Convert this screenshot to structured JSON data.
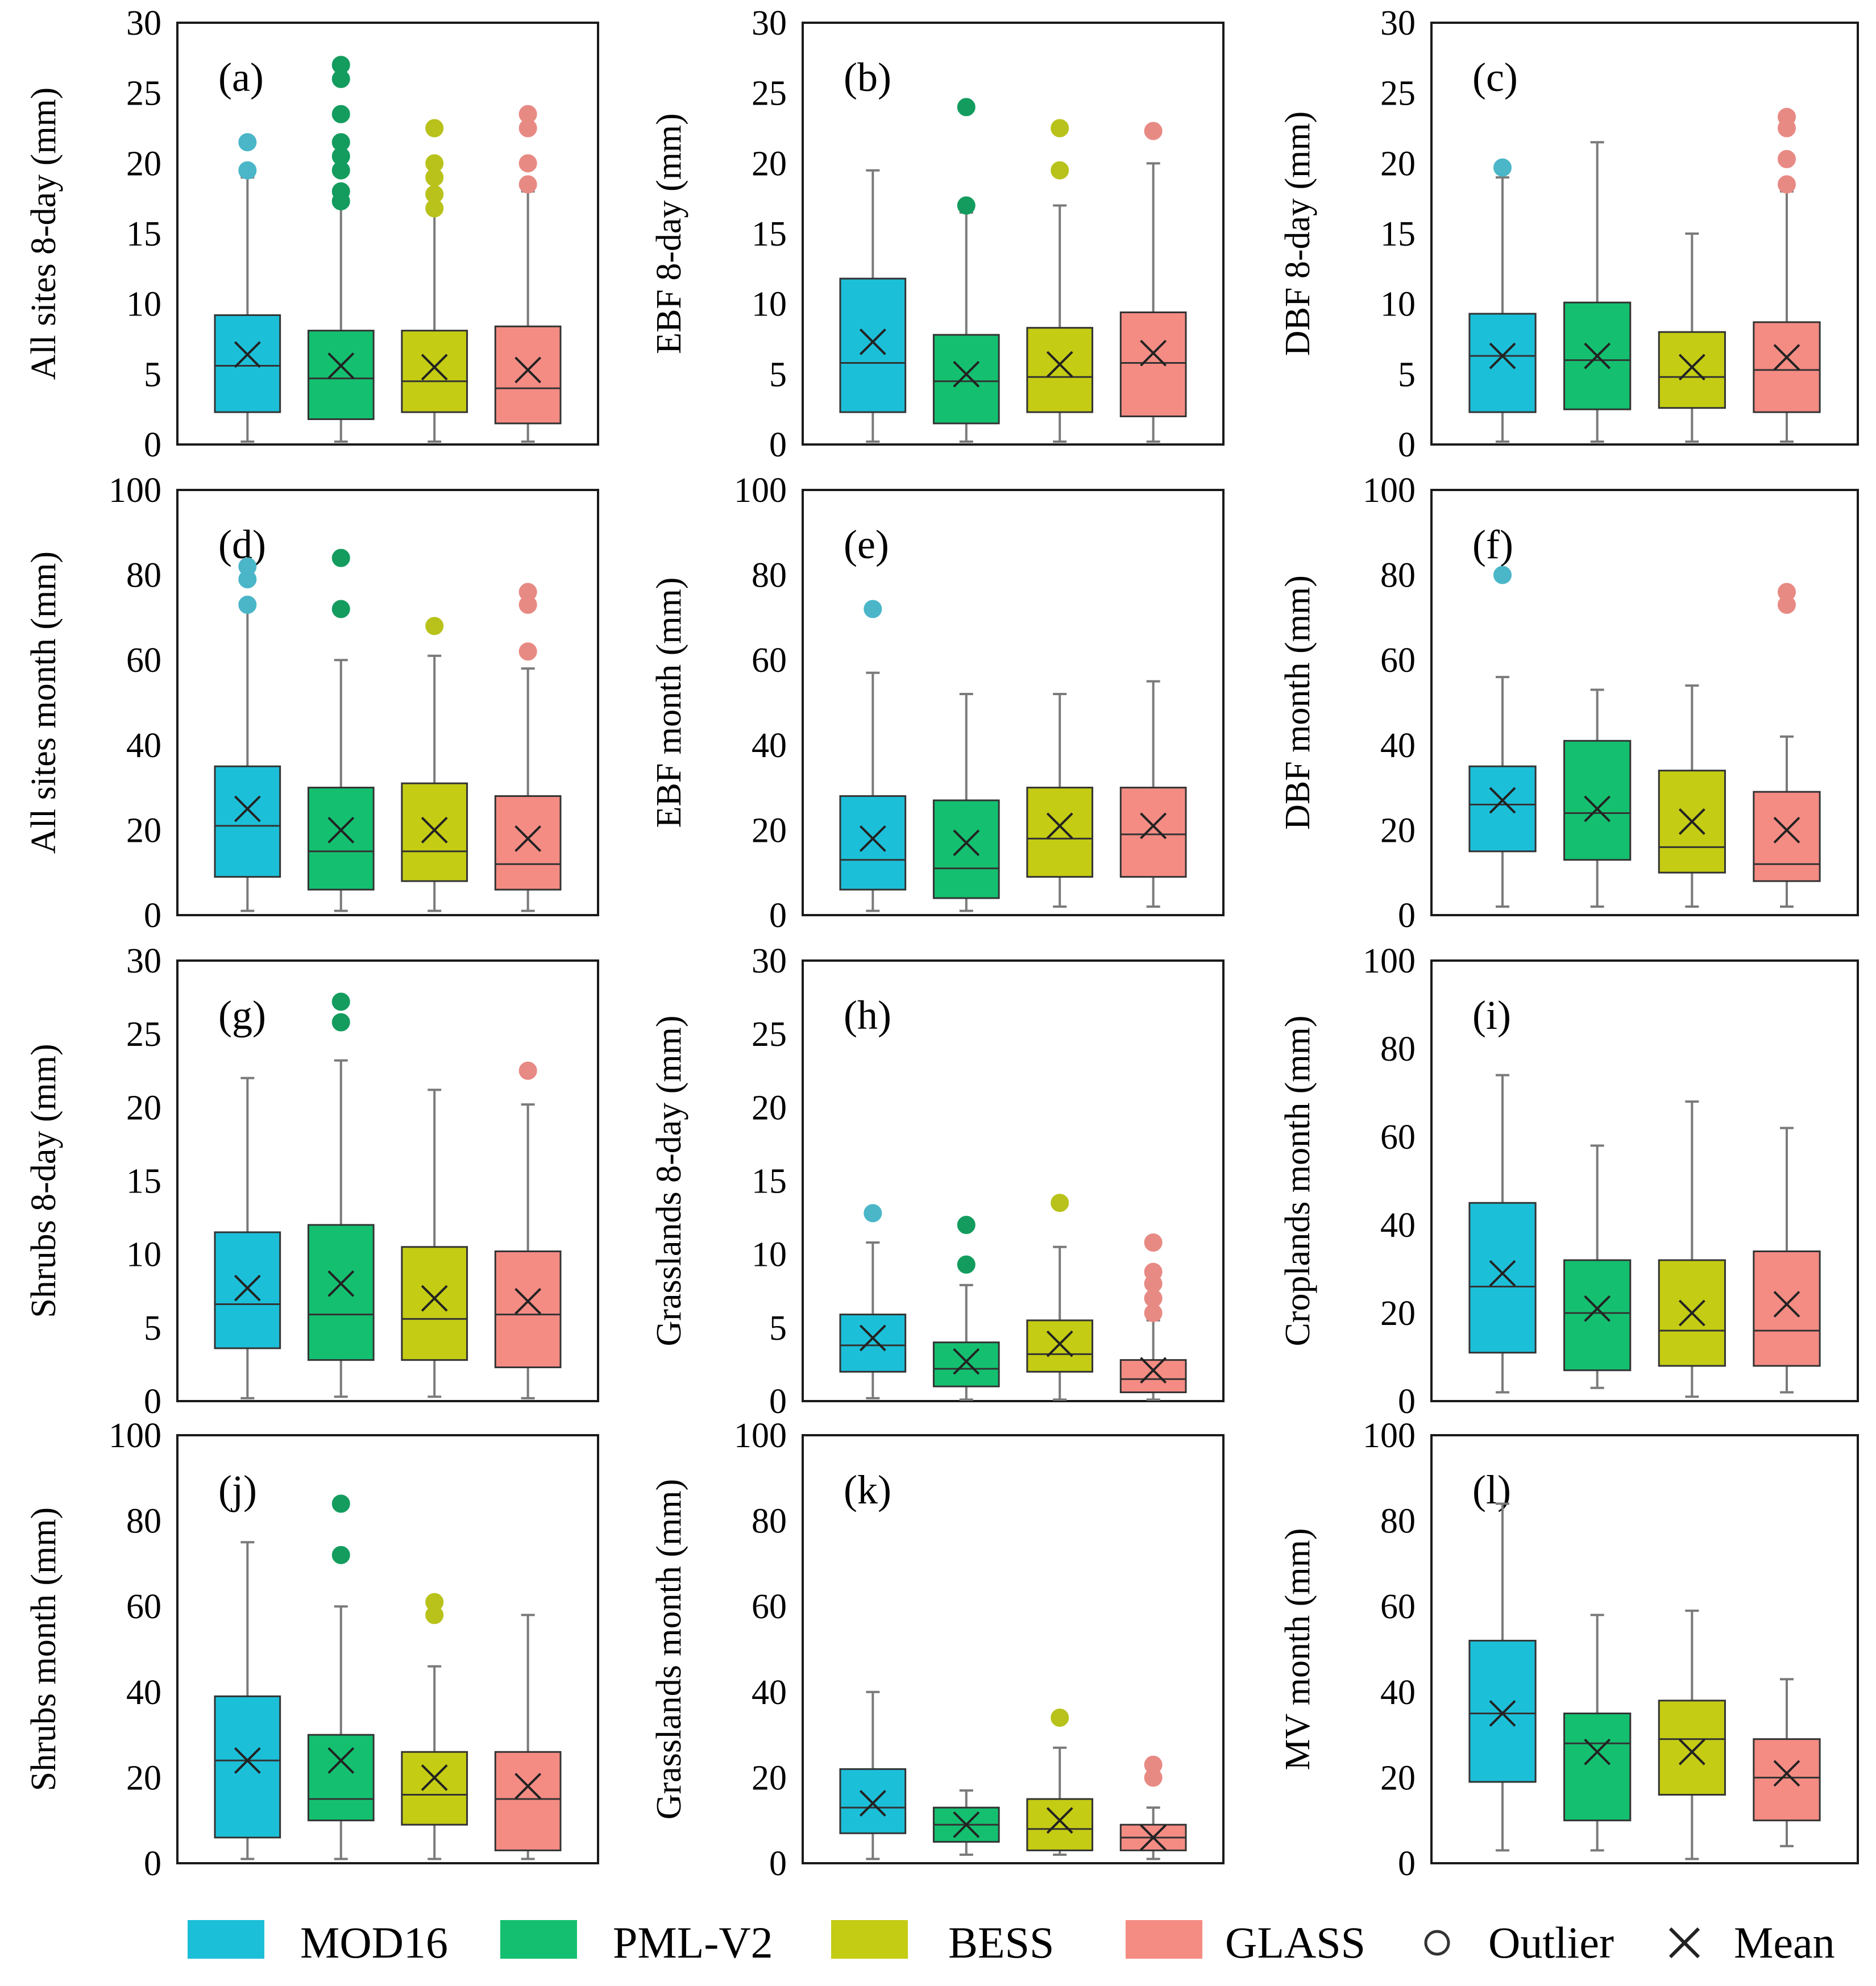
{
  "colors": {
    "MOD16": "#1cbfd8",
    "PML-V2": "#14c070",
    "BESS": "#c4cc14",
    "GLASS": "#f48c84",
    "MOD16_outlier": "#4ab6c8",
    "PML-V2_outlier": "#139c5e",
    "BESS_outlier": "#b8c21a",
    "GLASS_outlier": "#e88a84"
  },
  "legend": {
    "items": [
      {
        "key": "MOD16",
        "label": "MOD16"
      },
      {
        "key": "PML-V2",
        "label": "PML-V2"
      },
      {
        "key": "BESS",
        "label": "BESS"
      },
      {
        "key": "GLASS",
        "label": "GLASS"
      }
    ],
    "outlier_label": "Outlier",
    "mean_label": "Mean"
  },
  "chart_data": [
    {
      "type": "box",
      "panel": "(a)",
      "ylabel": "All sites 8-day (mm)",
      "ylim": [
        0,
        30
      ],
      "yticks": [
        0,
        5,
        10,
        15,
        20,
        25,
        30
      ],
      "series": [
        {
          "name": "MOD16",
          "min": 0.2,
          "q1": 2.3,
          "median": 5.6,
          "q3": 9.2,
          "max": 19.0,
          "mean": 6.4,
          "outliers": [
            19.5,
            21.5
          ]
        },
        {
          "name": "PML-V2",
          "min": 0.2,
          "q1": 1.8,
          "median": 4.7,
          "q3": 8.1,
          "max": 17.0,
          "mean": 5.6,
          "outliers": [
            17.3,
            18.0,
            19.5,
            20.5,
            21.5,
            23.5,
            26.0,
            27.0
          ]
        },
        {
          "name": "BESS",
          "min": 0.2,
          "q1": 2.3,
          "median": 4.5,
          "q3": 8.1,
          "max": 16.5,
          "mean": 5.5,
          "outliers": [
            16.8,
            17.8,
            19.0,
            20.0,
            22.5
          ]
        },
        {
          "name": "GLASS",
          "min": 0.2,
          "q1": 1.5,
          "median": 4.0,
          "q3": 8.4,
          "max": 18.0,
          "mean": 5.3,
          "outliers": [
            18.5,
            20.0,
            22.5,
            23.5
          ]
        }
      ]
    },
    {
      "type": "box",
      "panel": "(b)",
      "ylabel": "EBF 8-day (mm)",
      "ylim": [
        0,
        30
      ],
      "yticks": [
        0,
        5,
        10,
        15,
        20,
        25,
        30
      ],
      "series": [
        {
          "name": "MOD16",
          "min": 0.2,
          "q1": 2.3,
          "median": 5.8,
          "q3": 11.8,
          "max": 19.5,
          "mean": 7.3,
          "outliers": []
        },
        {
          "name": "PML-V2",
          "min": 0.2,
          "q1": 1.5,
          "median": 4.5,
          "q3": 7.8,
          "max": 16.5,
          "mean": 5.0,
          "outliers": [
            17.0,
            24.0
          ]
        },
        {
          "name": "BESS",
          "min": 0.2,
          "q1": 2.3,
          "median": 4.8,
          "q3": 8.3,
          "max": 17.0,
          "mean": 5.7,
          "outliers": [
            19.5,
            22.5
          ]
        },
        {
          "name": "GLASS",
          "min": 0.2,
          "q1": 2.0,
          "median": 5.8,
          "q3": 9.4,
          "max": 20.0,
          "mean": 6.5,
          "outliers": [
            22.3
          ]
        }
      ]
    },
    {
      "type": "box",
      "panel": "(c)",
      "ylabel": "DBF 8-day (mm)",
      "ylim": [
        0,
        30
      ],
      "yticks": [
        0,
        5,
        10,
        15,
        20,
        25,
        30
      ],
      "series": [
        {
          "name": "MOD16",
          "min": 0.2,
          "q1": 2.3,
          "median": 6.3,
          "q3": 9.3,
          "max": 19.0,
          "mean": 6.3,
          "outliers": [
            19.7
          ]
        },
        {
          "name": "PML-V2",
          "min": 0.2,
          "q1": 2.5,
          "median": 6.0,
          "q3": 10.1,
          "max": 21.5,
          "mean": 6.3,
          "outliers": []
        },
        {
          "name": "BESS",
          "min": 0.2,
          "q1": 2.6,
          "median": 4.8,
          "q3": 8.0,
          "max": 15.0,
          "mean": 5.5,
          "outliers": []
        },
        {
          "name": "GLASS",
          "min": 0.2,
          "q1": 2.3,
          "median": 5.3,
          "q3": 8.7,
          "max": 18.0,
          "mean": 6.2,
          "outliers": [
            18.5,
            20.3,
            22.5,
            23.3
          ]
        }
      ]
    },
    {
      "type": "box",
      "panel": "(d)",
      "ylabel": "All sites month (mm)",
      "ylim": [
        0,
        100
      ],
      "yticks": [
        0,
        20,
        40,
        60,
        80,
        100
      ],
      "series": [
        {
          "name": "MOD16",
          "min": 1,
          "q1": 9,
          "median": 21,
          "q3": 35,
          "max": 72,
          "mean": 25,
          "outliers": [
            73,
            79,
            82
          ]
        },
        {
          "name": "PML-V2",
          "min": 1,
          "q1": 6,
          "median": 15,
          "q3": 30,
          "max": 60,
          "mean": 20,
          "outliers": [
            72,
            84
          ]
        },
        {
          "name": "BESS",
          "min": 1,
          "q1": 8,
          "median": 15,
          "q3": 31,
          "max": 61,
          "mean": 20,
          "outliers": [
            68
          ]
        },
        {
          "name": "GLASS",
          "min": 1,
          "q1": 6,
          "median": 12,
          "q3": 28,
          "max": 58,
          "mean": 18,
          "outliers": [
            62,
            73,
            76
          ]
        }
      ]
    },
    {
      "type": "box",
      "panel": "(e)",
      "ylabel": "EBF month (mm)",
      "ylim": [
        0,
        100
      ],
      "yticks": [
        0,
        20,
        40,
        60,
        80,
        100
      ],
      "series": [
        {
          "name": "MOD16",
          "min": 1,
          "q1": 6,
          "median": 13,
          "q3": 28,
          "max": 57,
          "mean": 18,
          "outliers": [
            72
          ]
        },
        {
          "name": "PML-V2",
          "min": 1,
          "q1": 4,
          "median": 11,
          "q3": 27,
          "max": 52,
          "mean": 17,
          "outliers": []
        },
        {
          "name": "BESS",
          "min": 2,
          "q1": 9,
          "median": 18,
          "q3": 30,
          "max": 52,
          "mean": 21,
          "outliers": []
        },
        {
          "name": "GLASS",
          "min": 2,
          "q1": 9,
          "median": 19,
          "q3": 30,
          "max": 55,
          "mean": 21,
          "outliers": []
        }
      ]
    },
    {
      "type": "box",
      "panel": "(f)",
      "ylabel": "DBF month (mm)",
      "ylim": [
        0,
        100
      ],
      "yticks": [
        0,
        20,
        40,
        60,
        80,
        100
      ],
      "series": [
        {
          "name": "MOD16",
          "min": 2,
          "q1": 15,
          "median": 26,
          "q3": 35,
          "max": 56,
          "mean": 27,
          "outliers": [
            80
          ]
        },
        {
          "name": "PML-V2",
          "min": 2,
          "q1": 13,
          "median": 24,
          "q3": 41,
          "max": 53,
          "mean": 25,
          "outliers": []
        },
        {
          "name": "BESS",
          "min": 2,
          "q1": 10,
          "median": 16,
          "q3": 34,
          "max": 54,
          "mean": 22,
          "outliers": []
        },
        {
          "name": "GLASS",
          "min": 2,
          "q1": 8,
          "median": 12,
          "q3": 29,
          "max": 42,
          "mean": 20,
          "outliers": [
            73,
            76
          ]
        }
      ]
    },
    {
      "type": "box",
      "panel": "(g)",
      "ylabel": "Shrubs 8-day (mm)",
      "ylim": [
        0,
        30
      ],
      "yticks": [
        0,
        5,
        10,
        15,
        20,
        25,
        30
      ],
      "series": [
        {
          "name": "MOD16",
          "min": 0.2,
          "q1": 3.6,
          "median": 6.6,
          "q3": 11.5,
          "max": 22.0,
          "mean": 7.7,
          "outliers": []
        },
        {
          "name": "PML-V2",
          "min": 0.3,
          "q1": 2.8,
          "median": 5.9,
          "q3": 12.0,
          "max": 23.2,
          "mean": 8.0,
          "outliers": [
            25.8,
            27.2
          ]
        },
        {
          "name": "BESS",
          "min": 0.3,
          "q1": 2.8,
          "median": 5.6,
          "q3": 10.5,
          "max": 21.2,
          "mean": 7.0,
          "outliers": []
        },
        {
          "name": "GLASS",
          "min": 0.2,
          "q1": 2.3,
          "median": 5.9,
          "q3": 10.2,
          "max": 20.2,
          "mean": 6.8,
          "outliers": [
            22.5
          ]
        }
      ]
    },
    {
      "type": "box",
      "panel": "(h)",
      "ylabel": "Grasslands 8-day (mm)",
      "ylim": [
        0,
        30
      ],
      "yticks": [
        0,
        5,
        10,
        15,
        20,
        25,
        30
      ],
      "series": [
        {
          "name": "MOD16",
          "min": 0.2,
          "q1": 2.0,
          "median": 3.8,
          "q3": 5.9,
          "max": 10.8,
          "mean": 4.3,
          "outliers": [
            12.8
          ]
        },
        {
          "name": "PML-V2",
          "min": 0.1,
          "q1": 1.0,
          "median": 2.2,
          "q3": 4.0,
          "max": 7.9,
          "mean": 2.7,
          "outliers": [
            9.3,
            12.0
          ]
        },
        {
          "name": "BESS",
          "min": 0.1,
          "q1": 2.0,
          "median": 3.2,
          "q3": 5.5,
          "max": 10.5,
          "mean": 3.9,
          "outliers": [
            13.5
          ]
        },
        {
          "name": "GLASS",
          "min": 0.1,
          "q1": 0.6,
          "median": 1.5,
          "q3": 2.8,
          "max": 5.5,
          "mean": 2.1,
          "outliers": [
            6.0,
            7.0,
            8.0,
            8.8,
            10.8
          ]
        }
      ]
    },
    {
      "type": "box",
      "panel": "(i)",
      "ylabel": "Croplands month (mm)",
      "ylim": [
        0,
        100
      ],
      "yticks": [
        0,
        20,
        40,
        60,
        80,
        100
      ],
      "series": [
        {
          "name": "MOD16",
          "min": 2,
          "q1": 11,
          "median": 26,
          "q3": 45,
          "max": 74,
          "mean": 29,
          "outliers": []
        },
        {
          "name": "PML-V2",
          "min": 3,
          "q1": 7,
          "median": 20,
          "q3": 32,
          "max": 58,
          "mean": 21,
          "outliers": []
        },
        {
          "name": "BESS",
          "min": 1,
          "q1": 8,
          "median": 16,
          "q3": 32,
          "max": 68,
          "mean": 20,
          "outliers": []
        },
        {
          "name": "GLASS",
          "min": 2,
          "q1": 8,
          "median": 16,
          "q3": 34,
          "max": 62,
          "mean": 22,
          "outliers": []
        }
      ]
    },
    {
      "type": "box",
      "panel": "(j)",
      "ylabel": "Shrubs  month (mm)",
      "ylim": [
        0,
        100
      ],
      "yticks": [
        0,
        20,
        40,
        60,
        80,
        100
      ],
      "series": [
        {
          "name": "MOD16",
          "min": 1,
          "q1": 6,
          "median": 24,
          "q3": 39,
          "max": 75,
          "mean": 24,
          "outliers": []
        },
        {
          "name": "PML-V2",
          "min": 1,
          "q1": 10,
          "median": 15,
          "q3": 30,
          "max": 60,
          "mean": 24,
          "outliers": [
            72,
            84
          ]
        },
        {
          "name": "BESS",
          "min": 1,
          "q1": 9,
          "median": 16,
          "q3": 26,
          "max": 46,
          "mean": 20,
          "outliers": [
            58,
            61
          ]
        },
        {
          "name": "GLASS",
          "min": 1,
          "q1": 3,
          "median": 15,
          "q3": 26,
          "max": 58,
          "mean": 18,
          "outliers": []
        }
      ]
    },
    {
      "type": "box",
      "panel": "(k)",
      "ylabel": "Grasslands month (mm)",
      "ylim": [
        0,
        100
      ],
      "yticks": [
        0,
        20,
        40,
        60,
        80,
        100
      ],
      "series": [
        {
          "name": "MOD16",
          "min": 1,
          "q1": 7,
          "median": 13,
          "q3": 22,
          "max": 40,
          "mean": 14,
          "outliers": []
        },
        {
          "name": "PML-V2",
          "min": 2,
          "q1": 5,
          "median": 9,
          "q3": 13,
          "max": 17,
          "mean": 9,
          "outliers": []
        },
        {
          "name": "BESS",
          "min": 2,
          "q1": 3,
          "median": 8,
          "q3": 15,
          "max": 27,
          "mean": 10,
          "outliers": [
            34
          ]
        },
        {
          "name": "GLASS",
          "min": 1,
          "q1": 3,
          "median": 6,
          "q3": 9,
          "max": 13,
          "mean": 6,
          "outliers": [
            20,
            23
          ]
        }
      ]
    },
    {
      "type": "box",
      "panel": "(l)",
      "ylabel": "MV month (mm)",
      "ylim": [
        0,
        100
      ],
      "yticks": [
        0,
        20,
        40,
        60,
        80,
        100
      ],
      "series": [
        {
          "name": "MOD16",
          "min": 3,
          "q1": 19,
          "median": 35,
          "q3": 52,
          "max": 84,
          "mean": 35,
          "outliers": []
        },
        {
          "name": "PML-V2",
          "min": 3,
          "q1": 10,
          "median": 28,
          "q3": 35,
          "max": 58,
          "mean": 26,
          "outliers": []
        },
        {
          "name": "BESS",
          "min": 1,
          "q1": 16,
          "median": 29,
          "q3": 38,
          "max": 59,
          "mean": 26,
          "outliers": []
        },
        {
          "name": "GLASS",
          "min": 4,
          "q1": 10,
          "median": 20,
          "q3": 29,
          "max": 43,
          "mean": 21,
          "outliers": []
        }
      ]
    }
  ]
}
